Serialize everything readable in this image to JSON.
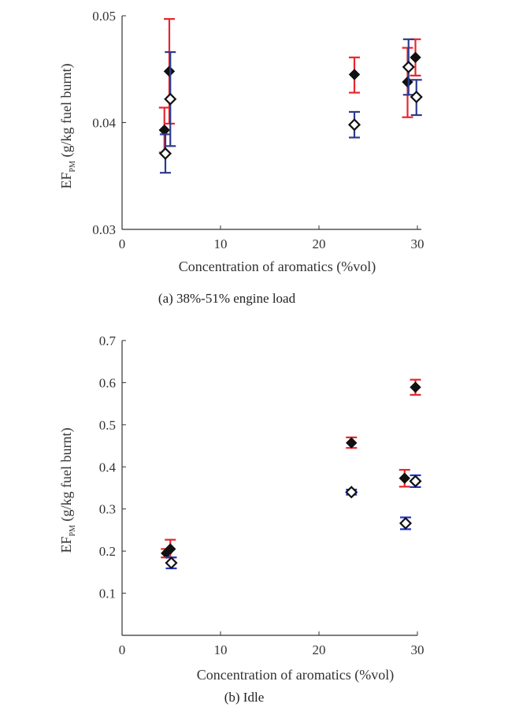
{
  "chart_data": [
    {
      "type": "scatter",
      "caption": "(a) 38%-51% engine load",
      "xlabel": "Concentration of aromatics (%vol)",
      "ylabel_main": "EF",
      "ylabel_sub": "PM",
      "ylabel_rest": " (g/kg fuel burnt)",
      "xlim": [
        0,
        30
      ],
      "ylim": [
        0.03,
        0.05
      ],
      "xticks": [
        "0",
        "10",
        "20",
        "30"
      ],
      "yticks": [
        "0.03",
        "0.04",
        "0.05"
      ],
      "xtick_values": [
        0,
        10,
        20,
        30
      ],
      "ytick_values": [
        0.03,
        0.04,
        0.05
      ],
      "series": [
        {
          "marker": "filled-diamond",
          "error_color": "#e8262c",
          "points": [
            {
              "x": 4.3,
              "y": 0.0393,
              "lo": 0.0372,
              "hi": 0.0414
            },
            {
              "x": 4.8,
              "y": 0.0448,
              "lo": 0.0399,
              "hi": 0.0497
            },
            {
              "x": 23.6,
              "y": 0.0445,
              "lo": 0.0428,
              "hi": 0.0461
            },
            {
              "x": 29.0,
              "y": 0.0438,
              "lo": 0.0405,
              "hi": 0.047
            },
            {
              "x": 29.8,
              "y": 0.0461,
              "lo": 0.0444,
              "hi": 0.0478
            }
          ]
        },
        {
          "marker": "open-diamond",
          "error_color": "#2e3a8f",
          "points": [
            {
              "x": 4.4,
              "y": 0.0371,
              "lo": 0.0353,
              "hi": 0.0389
            },
            {
              "x": 4.9,
              "y": 0.0422,
              "lo": 0.0378,
              "hi": 0.0466
            },
            {
              "x": 23.6,
              "y": 0.0398,
              "lo": 0.0386,
              "hi": 0.041
            },
            {
              "x": 29.1,
              "y": 0.0452,
              "lo": 0.0426,
              "hi": 0.0478
            },
            {
              "x": 29.9,
              "y": 0.0424,
              "lo": 0.0407,
              "hi": 0.044
            }
          ]
        }
      ]
    },
    {
      "type": "scatter",
      "caption": "(b) Idle",
      "xlabel": "Concentration of aromatics (%vol)",
      "ylabel_main": "EF",
      "ylabel_sub": "PM",
      "ylabel_rest": " (g/kg fuel burnt)",
      "xlim": [
        0,
        30
      ],
      "ylim": [
        0.0,
        0.7
      ],
      "xticks": [
        "0",
        "10",
        "20",
        "30"
      ],
      "yticks": [
        "0.1",
        "0.2",
        "0.3",
        "0.4",
        "0.5",
        "0.6",
        "0.7"
      ],
      "xtick_values": [
        0,
        10,
        20,
        30
      ],
      "ytick_values": [
        0.1,
        0.2,
        0.3,
        0.4,
        0.5,
        0.6,
        0.7
      ],
      "series": [
        {
          "marker": "filled-diamond",
          "error_color": "#e8262c",
          "points": [
            {
              "x": 4.5,
              "y": 0.195,
              "lo": 0.185,
              "hi": 0.205
            },
            {
              "x": 4.9,
              "y": 0.205,
              "lo": 0.185,
              "hi": 0.227
            },
            {
              "x": 23.3,
              "y": 0.457,
              "lo": 0.445,
              "hi": 0.47
            },
            {
              "x": 28.7,
              "y": 0.373,
              "lo": 0.353,
              "hi": 0.393
            },
            {
              "x": 29.8,
              "y": 0.589,
              "lo": 0.571,
              "hi": 0.607
            }
          ]
        },
        {
          "marker": "open-diamond",
          "error_color": "#2233cc",
          "points": [
            {
              "x": 5.0,
              "y": 0.172,
              "lo": 0.159,
              "hi": 0.185
            },
            {
              "x": 23.3,
              "y": 0.34,
              "lo": 0.334,
              "hi": 0.346
            },
            {
              "x": 28.8,
              "y": 0.266,
              "lo": 0.252,
              "hi": 0.28
            },
            {
              "x": 29.8,
              "y": 0.366,
              "lo": 0.352,
              "hi": 0.38
            }
          ]
        }
      ]
    }
  ]
}
